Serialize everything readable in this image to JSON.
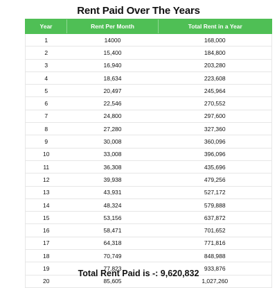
{
  "title": "Rent Paid Over The Years",
  "table": {
    "headers": [
      "Year",
      "Rent Per Month",
      "Total Rent in a Year"
    ],
    "rows": [
      [
        "1",
        "14000",
        "168,000"
      ],
      [
        "2",
        "15,400",
        "184,800"
      ],
      [
        "3",
        "16,940",
        "203,280"
      ],
      [
        "4",
        "18,634",
        "223,608"
      ],
      [
        "5",
        "20,497",
        "245,964"
      ],
      [
        "6",
        "22,546",
        "270,552"
      ],
      [
        "7",
        "24,800",
        "297,600"
      ],
      [
        "8",
        "27,280",
        "327,360"
      ],
      [
        "9",
        "30,008",
        "360,096"
      ],
      [
        "10",
        "33,008",
        "396,096"
      ],
      [
        "11",
        "36,308",
        "435,696"
      ],
      [
        "12",
        "39,938",
        "479,256"
      ],
      [
        "13",
        "43,931",
        "527,172"
      ],
      [
        "14",
        "48,324",
        "579,888"
      ],
      [
        "15",
        "53,156",
        "637,872"
      ],
      [
        "16",
        "58,471",
        "701,652"
      ],
      [
        "17",
        "64,318",
        "771,816"
      ],
      [
        "18",
        "70,749",
        "848,988"
      ],
      [
        "19",
        "77,823",
        "933,876"
      ],
      [
        "20",
        "85,605",
        "1,027,260"
      ]
    ]
  },
  "total": "Total Rent Paid is -: 9,620,832",
  "colors": {
    "header_bg": "#4fbf55",
    "header_text": "#ffffff",
    "row_border": "#e6e6e6"
  }
}
